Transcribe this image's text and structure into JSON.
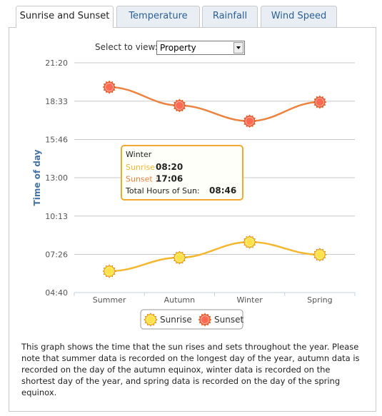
{
  "tabs": [
    "Sunrise and Sunset",
    "Temperature",
    "Rainfall",
    "Wind Speed"
  ],
  "select": {
    "label": "Select to view:",
    "value": "Property"
  },
  "description": "This graph shows the time that the sun rises and sets throughout the year. Please note that summer data is recorded on the longest day of the year, autumn data is recorded on the day of the autumn equinox, winter data is recorded on the shortest day of the year, and spring data is recorded on the day of the spring equinox.",
  "chart_data": {
    "type": "line",
    "y_label": "Time of day",
    "categories": [
      "Summer",
      "Autumn",
      "Winter",
      "Spring"
    ],
    "series": [
      {
        "name": "Sunrise",
        "color": "#f5b730",
        "values": [
          373,
          432,
          500,
          445
        ]
      },
      {
        "name": "Sunset",
        "color": "#ec8340",
        "values": [
          1174,
          1094,
          1026,
          1109
        ]
      }
    ],
    "ylim": [
      280,
      1280
    ],
    "yticks": [
      {
        "value": 280,
        "label": "04:40"
      },
      {
        "value": 446,
        "label": "07:26"
      },
      {
        "value": 613,
        "label": "10:13"
      },
      {
        "value": 780,
        "label": "13:00"
      },
      {
        "value": 946,
        "label": "15:46"
      },
      {
        "value": 1113,
        "label": "18:33"
      },
      {
        "value": 1280,
        "label": "21:20"
      }
    ],
    "grid": true,
    "tooltip": {
      "title": "Winter",
      "rows": [
        [
          "Sunrise :",
          "08:20"
        ],
        [
          "Sunset :",
          "17:06"
        ],
        [
          "Total Hours of Sun:",
          "08:46"
        ]
      ]
    }
  }
}
